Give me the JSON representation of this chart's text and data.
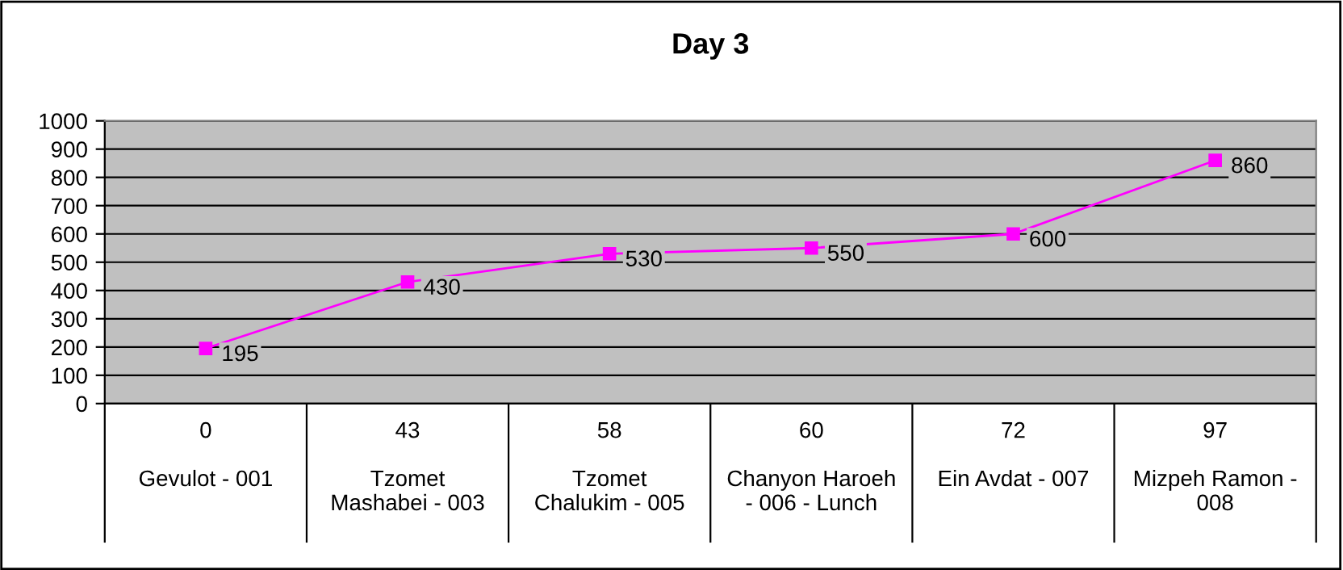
{
  "chart_data": {
    "type": "line",
    "title": "Day 3",
    "categories": [
      "0\n\nGevulot - 001",
      "43\n\nTzomet\nMashabei - 003",
      "58\n\nTzomet\nChalukim - 005",
      "60\n\nChanyon Haroeh\n- 006 - Lunch",
      "72\n\nEin Avdat - 007",
      "97\n\nMizpeh Ramon -\n008"
    ],
    "series": [
      {
        "color": "#ff00ff",
        "values": [
          195,
          430,
          530,
          550,
          600,
          860
        ]
      }
    ],
    "ylim": [
      0,
      1000
    ],
    "yticks": [
      0,
      100,
      200,
      300,
      400,
      500,
      600,
      700,
      800,
      900,
      1000
    ],
    "grid": "y",
    "marker": "square",
    "line_style": "solid",
    "data_labels": true,
    "legend": false
  }
}
